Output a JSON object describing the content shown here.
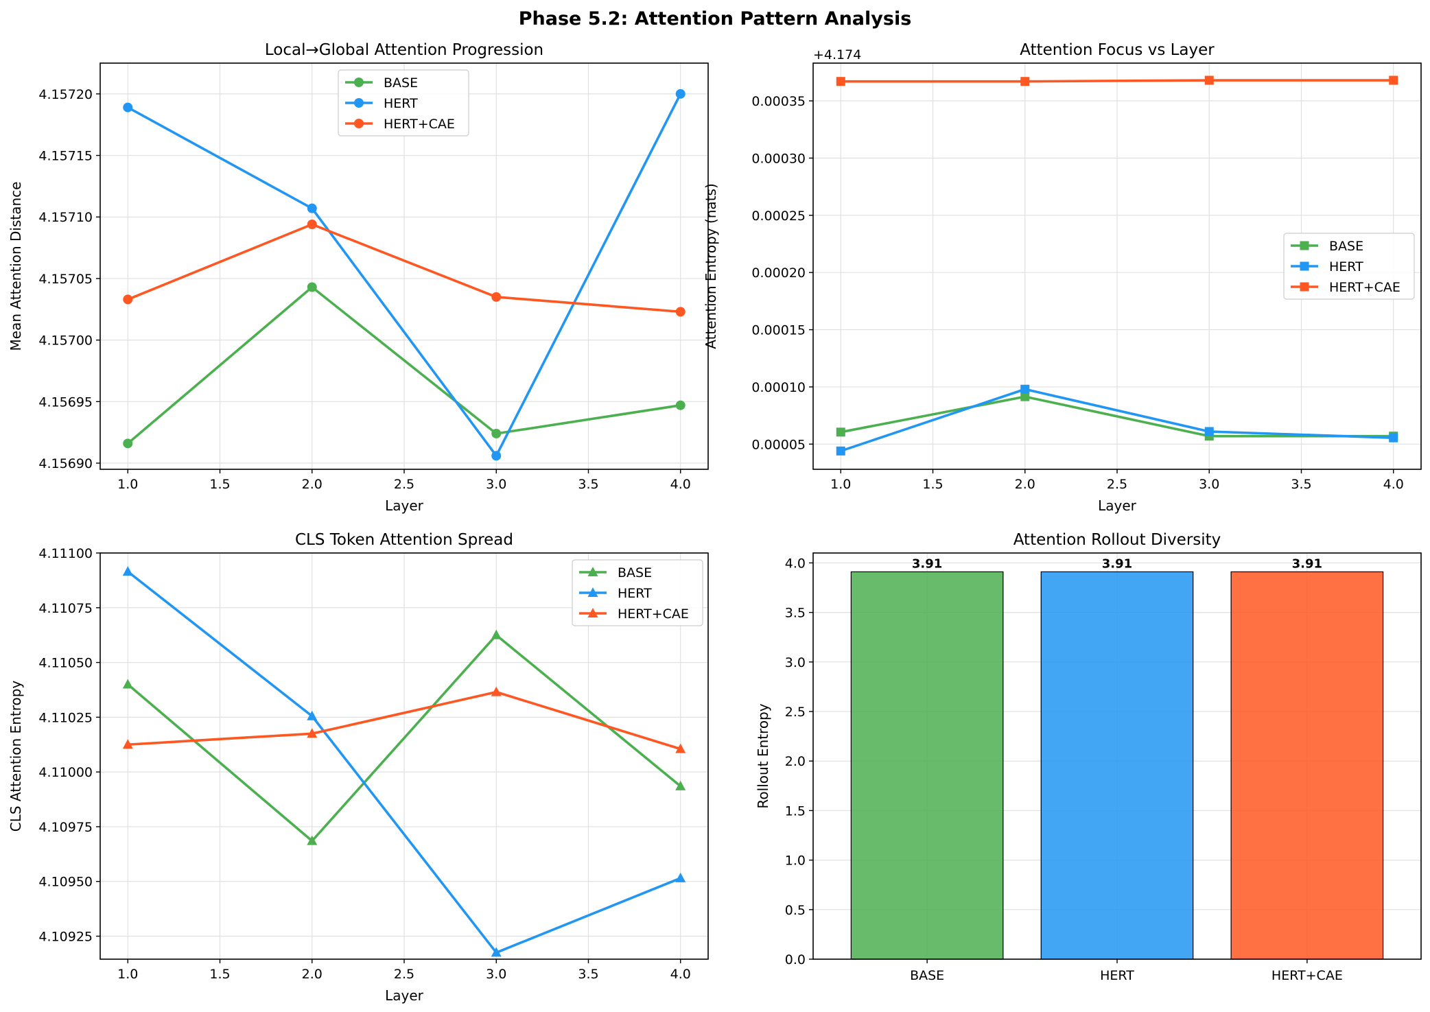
{
  "figure": {
    "title": "Phase 5.2: Attention Pattern Analysis"
  },
  "colors": {
    "BASE": "#4caf50",
    "HERT": "#2196f3",
    "HERT+CAE": "#ff5722"
  },
  "chart_data": [
    {
      "type": "line",
      "title": "Local→Global Attention Progression",
      "xlabel": "Layer",
      "ylabel": "Mean Attention Distance",
      "marker": "circle",
      "x": [
        1.0,
        2.0,
        3.0,
        4.0
      ],
      "xticks": [
        1.0,
        1.5,
        2.0,
        2.5,
        3.0,
        3.5,
        4.0
      ],
      "xtick_labels": [
        "1.0",
        "1.5",
        "2.0",
        "2.5",
        "3.0",
        "3.5",
        "4.0"
      ],
      "xlim": [
        0.85,
        4.15
      ],
      "yticks": [
        4.1569,
        4.15695,
        4.157,
        4.15705,
        4.1571,
        4.15715,
        4.1572
      ],
      "ytick_labels": [
        "4.15690",
        "4.15695",
        "4.15700",
        "4.15705",
        "4.15710",
        "4.15715",
        "4.15720"
      ],
      "ylim": [
        4.156895,
        4.157225
      ],
      "grid": true,
      "legend": "upper-center",
      "series": [
        {
          "name": "BASE",
          "values": [
            4.156916,
            4.157043,
            4.156924,
            4.156947
          ]
        },
        {
          "name": "HERT",
          "values": [
            4.157189,
            4.157107,
            4.156906,
            4.1572
          ]
        },
        {
          "name": "HERT+CAE",
          "values": [
            4.157033,
            4.157094,
            4.157035,
            4.157023
          ]
        }
      ]
    },
    {
      "type": "line",
      "title": "Attention Focus vs Layer",
      "xlabel": "Layer",
      "ylabel": "Attention Entropy (nats)",
      "offset_label": "+4.174",
      "marker": "square",
      "x": [
        1.0,
        2.0,
        3.0,
        4.0
      ],
      "xticks": [
        1.0,
        1.5,
        2.0,
        2.5,
        3.0,
        3.5,
        4.0
      ],
      "xtick_labels": [
        "1.0",
        "1.5",
        "2.0",
        "2.5",
        "3.0",
        "3.5",
        "4.0"
      ],
      "xlim": [
        0.85,
        4.15
      ],
      "yticks": [
        5e-05,
        0.0001,
        0.00015,
        0.0002,
        0.00025,
        0.0003,
        0.00035
      ],
      "ytick_labels": [
        "0.00005",
        "0.00010",
        "0.00015",
        "0.00020",
        "0.00025",
        "0.00030",
        "0.00035"
      ],
      "ylim": [
        2.8e-05,
        0.000383
      ],
      "grid": true,
      "legend": "center-right",
      "series": [
        {
          "name": "BASE",
          "values": [
            6.05e-05,
            9.15e-05,
            5.7e-05,
            5.7e-05
          ]
        },
        {
          "name": "HERT",
          "values": [
            4.4e-05,
            9.8e-05,
            6.1e-05,
            5.55e-05
          ]
        },
        {
          "name": "HERT+CAE",
          "values": [
            0.000367,
            0.000367,
            0.000368,
            0.000368
          ]
        }
      ]
    },
    {
      "type": "line",
      "title": "CLS Token Attention Spread",
      "xlabel": "Layer",
      "ylabel": "CLS Attention Entropy",
      "marker": "triangle",
      "x": [
        1.0,
        2.0,
        3.0,
        4.0
      ],
      "xticks": [
        1.0,
        1.5,
        2.0,
        2.5,
        3.0,
        3.5,
        4.0
      ],
      "xtick_labels": [
        "1.0",
        "1.5",
        "2.0",
        "2.5",
        "3.0",
        "3.5",
        "4.0"
      ],
      "xlim": [
        0.85,
        4.15
      ],
      "yticks": [
        4.10925,
        4.1095,
        4.10975,
        4.11,
        4.11025,
        4.1105,
        4.11075,
        4.111
      ],
      "ytick_labels": [
        "4.10925",
        "4.10950",
        "4.10975",
        "4.11000",
        "4.11025",
        "4.11050",
        "4.11075",
        "4.11100"
      ],
      "ylim": [
        4.109145,
        4.111
      ],
      "grid": true,
      "legend": "upper-right",
      "series": [
        {
          "name": "BASE",
          "values": [
            4.1104,
            4.109685,
            4.110625,
            4.109935
          ]
        },
        {
          "name": "HERT",
          "values": [
            4.110915,
            4.110255,
            4.109175,
            4.109515
          ]
        },
        {
          "name": "HERT+CAE",
          "values": [
            4.110125,
            4.110175,
            4.110365,
            4.110105
          ]
        }
      ]
    },
    {
      "type": "bar",
      "title": "Attention Rollout Diversity",
      "xlabel": "",
      "ylabel": "Rollout Entropy",
      "categories": [
        "BASE",
        "HERT",
        "HERT+CAE"
      ],
      "values": [
        3.91,
        3.91,
        3.91
      ],
      "value_labels": [
        "3.91",
        "3.91",
        "3.91"
      ],
      "yticks": [
        0.0,
        0.5,
        1.0,
        1.5,
        2.0,
        2.5,
        3.0,
        3.5,
        4.0
      ],
      "ytick_labels": [
        "0.0",
        "0.5",
        "1.0",
        "1.5",
        "2.0",
        "2.5",
        "3.0",
        "3.5",
        "4.0"
      ],
      "ylim": [
        0,
        4.1
      ],
      "grid": true
    }
  ]
}
